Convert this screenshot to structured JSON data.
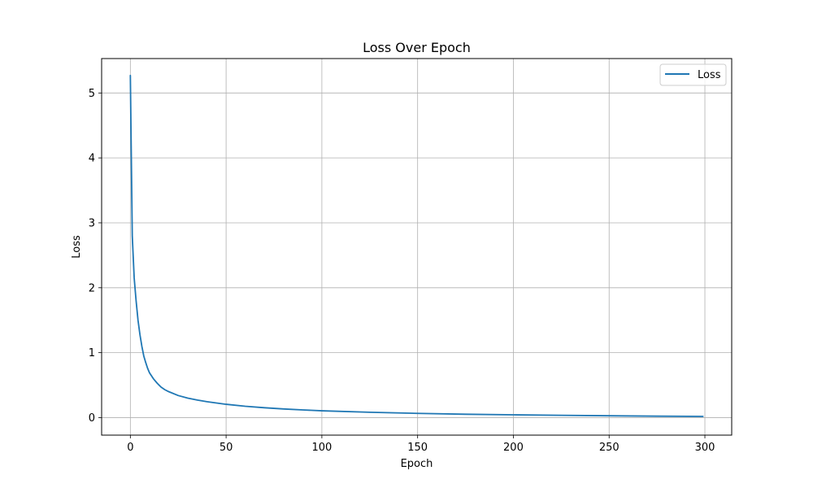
{
  "chart_data": {
    "type": "line",
    "title": "Loss Over Epoch",
    "xlabel": "Epoch",
    "ylabel": "Loss",
    "xlim": [
      -15,
      314
    ],
    "ylim": [
      -0.27,
      5.53
    ],
    "xticks": [
      0,
      50,
      100,
      150,
      200,
      250,
      300
    ],
    "yticks": [
      0,
      1,
      2,
      3,
      4,
      5
    ],
    "grid": true,
    "legend": {
      "position": "top-right",
      "entries": [
        "Loss"
      ]
    },
    "series": [
      {
        "name": "Loss",
        "color": "#1f77b4",
        "x": [
          0,
          1,
          2,
          3,
          4,
          5,
          6,
          7,
          8,
          9,
          10,
          12,
          14,
          16,
          18,
          20,
          25,
          30,
          35,
          40,
          50,
          60,
          70,
          80,
          90,
          100,
          125,
          150,
          175,
          200,
          225,
          250,
          275,
          299
        ],
        "y": [
          5.27,
          2.8,
          2.15,
          1.8,
          1.5,
          1.28,
          1.1,
          0.95,
          0.85,
          0.76,
          0.69,
          0.6,
          0.53,
          0.47,
          0.43,
          0.4,
          0.34,
          0.3,
          0.27,
          0.245,
          0.205,
          0.175,
          0.152,
          0.133,
          0.118,
          0.105,
          0.082,
          0.065,
          0.052,
          0.043,
          0.035,
          0.028,
          0.022,
          0.018
        ]
      }
    ]
  }
}
